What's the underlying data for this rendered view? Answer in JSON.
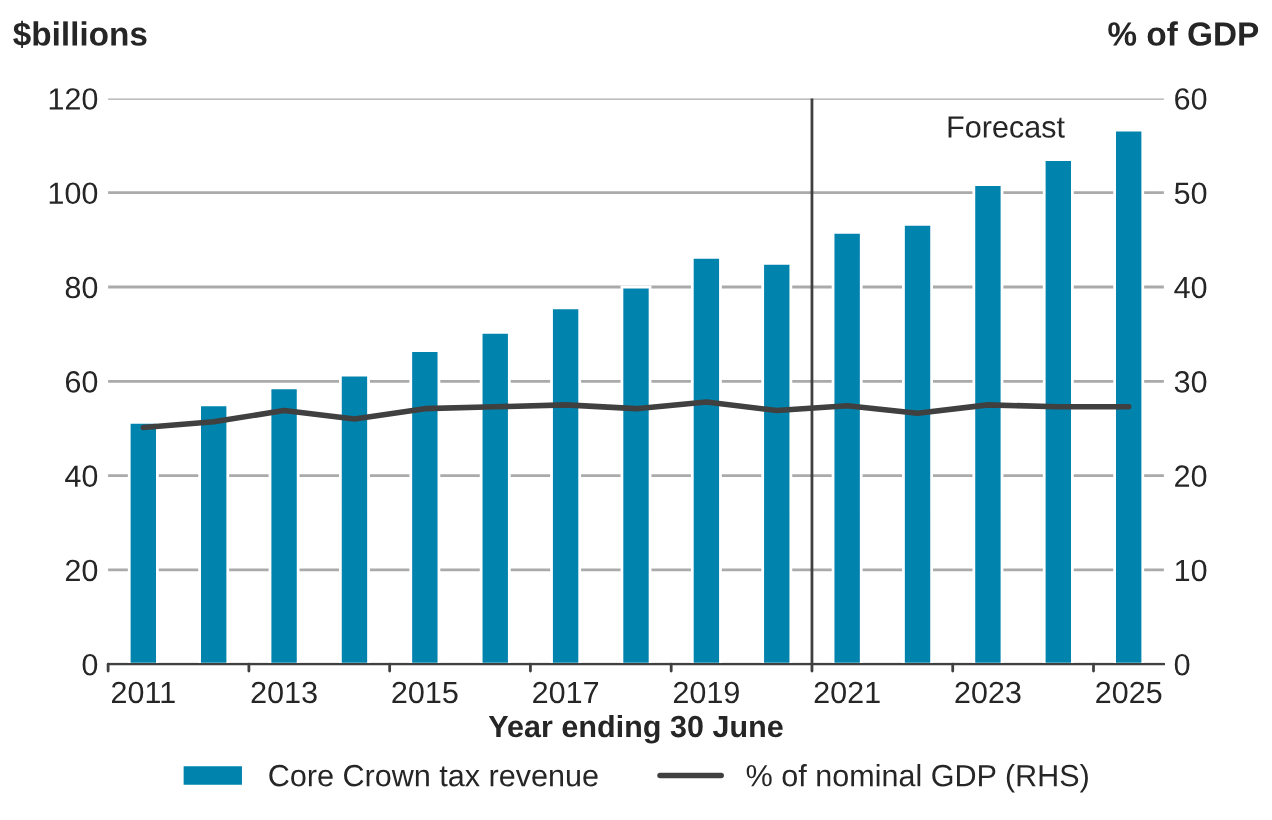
{
  "chart_data": {
    "type": "bar",
    "xlabel": "Year ending 30 June",
    "ylabel": "$billions",
    "y2label": "% of GDP",
    "x": [
      2011,
      2012,
      2013,
      2014,
      2015,
      2016,
      2017,
      2018,
      2019,
      2020,
      2021,
      2022,
      2023,
      2024,
      2025
    ],
    "xlim": [
      2010.5,
      2025.5
    ],
    "xticks": [
      2011,
      2013,
      2015,
      2017,
      2019,
      2021,
      2023,
      2025
    ],
    "ylim": [
      0,
      120
    ],
    "yticks": [
      0,
      20,
      40,
      60,
      80,
      100,
      120
    ],
    "y2lim": [
      0,
      60
    ],
    "y2ticks": [
      0,
      10,
      20,
      30,
      40,
      50,
      60
    ],
    "series": [
      {
        "name": "Core Crown tax revenue",
        "color": "#0083ad",
        "values": [
          51.3,
          55.0,
          58.6,
          61.3,
          66.5,
          70.4,
          75.6,
          80.0,
          86.3,
          85.0,
          91.6,
          93.3,
          101.7,
          107.0,
          113.3
        ]
      },
      {
        "name": "% of nominal GDP (RHS)",
        "type": "line",
        "axis": "y2",
        "color": "#404040",
        "values": [
          25.1,
          25.7,
          26.9,
          26.0,
          27.1,
          27.3,
          27.5,
          27.1,
          27.8,
          26.9,
          27.4,
          26.6,
          27.5,
          27.3,
          27.3
        ]
      }
    ],
    "ref_lines": [
      {
        "axis": "x",
        "value": 2020.5,
        "color": "#404040"
      }
    ],
    "annotations": [
      "Forecast"
    ],
    "grid": "y",
    "legend": "bottom"
  }
}
